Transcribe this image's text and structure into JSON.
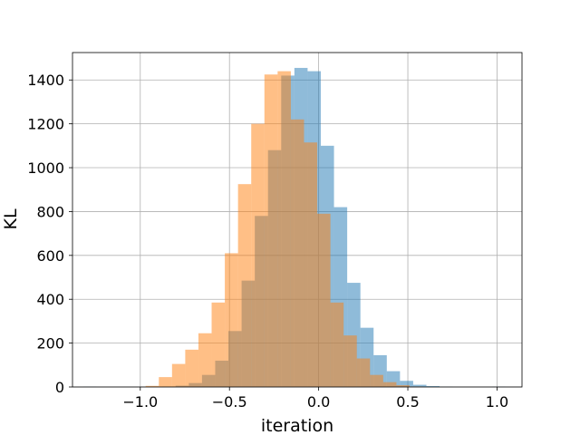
{
  "chart_data": {
    "type": "bar",
    "title": "",
    "xlabel": "iteration",
    "ylabel": "KL",
    "xlim": [
      -1.38,
      1.14
    ],
    "ylim": [
      0,
      1525
    ],
    "xticks": [
      -1.0,
      -0.5,
      0.0,
      0.5,
      1.0
    ],
    "xtick_labels": [
      "−1.0",
      "−0.5",
      "0.0",
      "0.5",
      "1.0"
    ],
    "yticks": [
      0,
      200,
      400,
      600,
      800,
      1000,
      1200,
      1400
    ],
    "ytick_labels": [
      "0",
      "200",
      "400",
      "600",
      "800",
      "1000",
      "1200",
      "1400"
    ],
    "grid": true,
    "legend": "none",
    "series": [
      {
        "color": "#1f77b4",
        "opacity": 0.5,
        "bin_edges": [
          -1.32,
          -1.246,
          -1.172,
          -1.098,
          -1.024,
          -0.95,
          -0.876,
          -0.802,
          -0.728,
          -0.654,
          -0.58,
          -0.506,
          -0.432,
          -0.358,
          -0.284,
          -0.21,
          -0.136,
          -0.062,
          0.012,
          0.086,
          0.16,
          0.234,
          0.308,
          0.382,
          0.456,
          0.53,
          0.604,
          0.678,
          0.752,
          0.826,
          0.9,
          0.974,
          1.048
        ],
        "values": [
          1,
          0,
          0,
          0,
          0,
          0,
          2,
          6,
          18,
          55,
          120,
          255,
          485,
          780,
          1080,
          1420,
          1455,
          1440,
          1100,
          820,
          475,
          270,
          145,
          72,
          28,
          10,
          4,
          1,
          0,
          0,
          0,
          1
        ]
      },
      {
        "color": "#ff7f0e",
        "opacity": 0.5,
        "bin_edges": [
          -0.97,
          -0.896,
          -0.822,
          -0.748,
          -0.674,
          -0.6,
          -0.526,
          -0.452,
          -0.378,
          -0.304,
          -0.23,
          -0.156,
          -0.082,
          -0.008,
          0.066,
          0.14,
          0.214,
          0.288,
          0.362,
          0.436,
          0.51,
          0.584
        ],
        "values": [
          5,
          45,
          105,
          170,
          245,
          385,
          610,
          925,
          1200,
          1425,
          1440,
          1220,
          1115,
          790,
          385,
          235,
          130,
          55,
          22,
          8,
          2
        ]
      }
    ]
  }
}
